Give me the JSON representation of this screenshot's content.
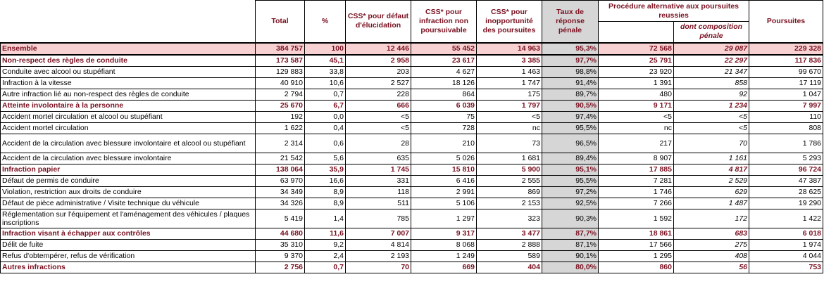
{
  "headers": {
    "total": "Total",
    "pct": "%",
    "css_defaut": "CSS* pour défaut d'élucidation",
    "css_infraction": "CSS* pour infraction non poursuivable",
    "css_inopp": "CSS* pour inopportunité des poursuites",
    "taux": "Taux de réponse pénale",
    "procedure": "Procédure alternative aux poursuites reussies",
    "composition": "dont composition pénale",
    "poursuites": "Poursuites"
  },
  "rows": [
    {
      "type": "ensemble",
      "label": "Ensemble",
      "total": "384 757",
      "pct": "100",
      "c1": "12 446",
      "c2": "55 452",
      "c3": "14 963",
      "taux": "95,3%",
      "proc": "72 568",
      "comp": "29 087",
      "pours": "229 328"
    },
    {
      "type": "cat",
      "label": "Non-respect des règles de conduite",
      "total": "173 587",
      "pct": "45,1",
      "c1": "2 958",
      "c2": "23 617",
      "c3": "3 385",
      "taux": "97,7%",
      "proc": "25 791",
      "comp": "22 297",
      "pours": "117 836"
    },
    {
      "type": "item",
      "label": "Conduite avec alcool ou stupéfiant",
      "total": "129 883",
      "pct": "33,8",
      "c1": "203",
      "c2": "4 627",
      "c3": "1 463",
      "taux": "98,8%",
      "proc": "23 920",
      "comp": "21 347",
      "pours": "99 670"
    },
    {
      "type": "item",
      "label": "Infraction à la vitesse",
      "total": "40 910",
      "pct": "10,6",
      "c1": "2 527",
      "c2": "18 126",
      "c3": "1 747",
      "taux": "91,4%",
      "proc": "1 391",
      "comp": "858",
      "pours": "17 119"
    },
    {
      "type": "item",
      "label": "Autre infraction lié au non-respect des règles de conduite",
      "total": "2 794",
      "pct": "0,7",
      "c1": "228",
      "c2": "864",
      "c3": "175",
      "taux": "89,7%",
      "proc": "480",
      "comp": "92",
      "pours": "1 047"
    },
    {
      "type": "cat",
      "label": "Atteinte involontaire à la personne",
      "total": "25 670",
      "pct": "6,7",
      "c1": "666",
      "c2": "6 039",
      "c3": "1 797",
      "taux": "90,5%",
      "proc": "9 171",
      "comp": "1 234",
      "pours": "7 997"
    },
    {
      "type": "item",
      "label": "Accident mortel circulation et alcool ou stupéfiant",
      "total": "192",
      "pct": "0,0",
      "c1": "<5",
      "c2": "75",
      "c3": "<5",
      "taux": "97,4%",
      "proc": "<5",
      "comp": "<5",
      "pours": "110"
    },
    {
      "type": "item",
      "label": "Accident mortel circulation",
      "total": "1 622",
      "pct": "0,4",
      "c1": "<5",
      "c2": "728",
      "c3": "nc",
      "taux": "95,5%",
      "proc": "nc",
      "comp": "<5",
      "pours": "808"
    },
    {
      "type": "tall",
      "label": "Accident de la circulation avec blessure involontaire et alcool ou stupéfiant",
      "total": "2 314",
      "pct": "0,6",
      "c1": "28",
      "c2": "210",
      "c3": "73",
      "taux": "96,5%",
      "proc": "217",
      "comp": "70",
      "pours": "1 786"
    },
    {
      "type": "item",
      "label": "Accident de la circulation avec blessure involontaire",
      "total": "21 542",
      "pct": "5,6",
      "c1": "635",
      "c2": "5 026",
      "c3": "1 681",
      "taux": "89,4%",
      "proc": "8 907",
      "comp": "1 161",
      "pours": "5 293"
    },
    {
      "type": "cat",
      "label": "Infraction papier",
      "total": "138 064",
      "pct": "35,9",
      "c1": "1 745",
      "c2": "15 810",
      "c3": "5 900",
      "taux": "95,1%",
      "proc": "17 885",
      "comp": "4 817",
      "pours": "96 724"
    },
    {
      "type": "item",
      "label": "Défaut de permis de conduire",
      "total": "63 970",
      "pct": "16,6",
      "c1": "331",
      "c2": "6 416",
      "c3": "2 555",
      "taux": "95,5%",
      "proc": "7 281",
      "comp": "2 529",
      "pours": "47 387"
    },
    {
      "type": "item",
      "label": "Violation, restriction aux droits de conduire",
      "total": "34 349",
      "pct": "8,9",
      "c1": "118",
      "c2": "2 991",
      "c3": "869",
      "taux": "97,2%",
      "proc": "1 746",
      "comp": "629",
      "pours": "28 625"
    },
    {
      "type": "item",
      "label": "Défaut de pièce administrative / Visite technique du véhicule",
      "total": "34 326",
      "pct": "8,9",
      "c1": "511",
      "c2": "5 106",
      "c3": "2 153",
      "taux": "92,5%",
      "proc": "7 266",
      "comp": "1 487",
      "pours": "19 290"
    },
    {
      "type": "tall",
      "label": "Réglementation sur l'équipement et l'aménagement des véhicules / plaques inscriptions",
      "total": "5 419",
      "pct": "1,4",
      "c1": "785",
      "c2": "1 297",
      "c3": "323",
      "taux": "90,3%",
      "proc": "1 592",
      "comp": "172",
      "pours": "1 422"
    },
    {
      "type": "cat",
      "label": "Infraction visant à échapper aux contrôles",
      "total": "44 680",
      "pct": "11,6",
      "c1": "7 007",
      "c2": "9 317",
      "c3": "3 477",
      "taux": "87,7%",
      "proc": "18 861",
      "comp": "683",
      "pours": "6 018"
    },
    {
      "type": "item",
      "label": "Délit de fuite",
      "total": "35 310",
      "pct": "9,2",
      "c1": "4 814",
      "c2": "8 068",
      "c3": "2 888",
      "taux": "87,1%",
      "proc": "17 566",
      "comp": "275",
      "pours": "1 974"
    },
    {
      "type": "item",
      "label": "Refus d'obtempérer, refus de vérification",
      "total": "9 370",
      "pct": "2,4",
      "c1": "2 193",
      "c2": "1 249",
      "c3": "589",
      "taux": "90,1%",
      "proc": "1 295",
      "comp": "408",
      "pours": "4 044"
    },
    {
      "type": "cat",
      "label": "Autres infractions",
      "total": "2 756",
      "pct": "0,7",
      "c1": "70",
      "c2": "669",
      "c3": "404",
      "taux": "80,0%",
      "proc": "860",
      "comp": "56",
      "pours": "753"
    }
  ]
}
